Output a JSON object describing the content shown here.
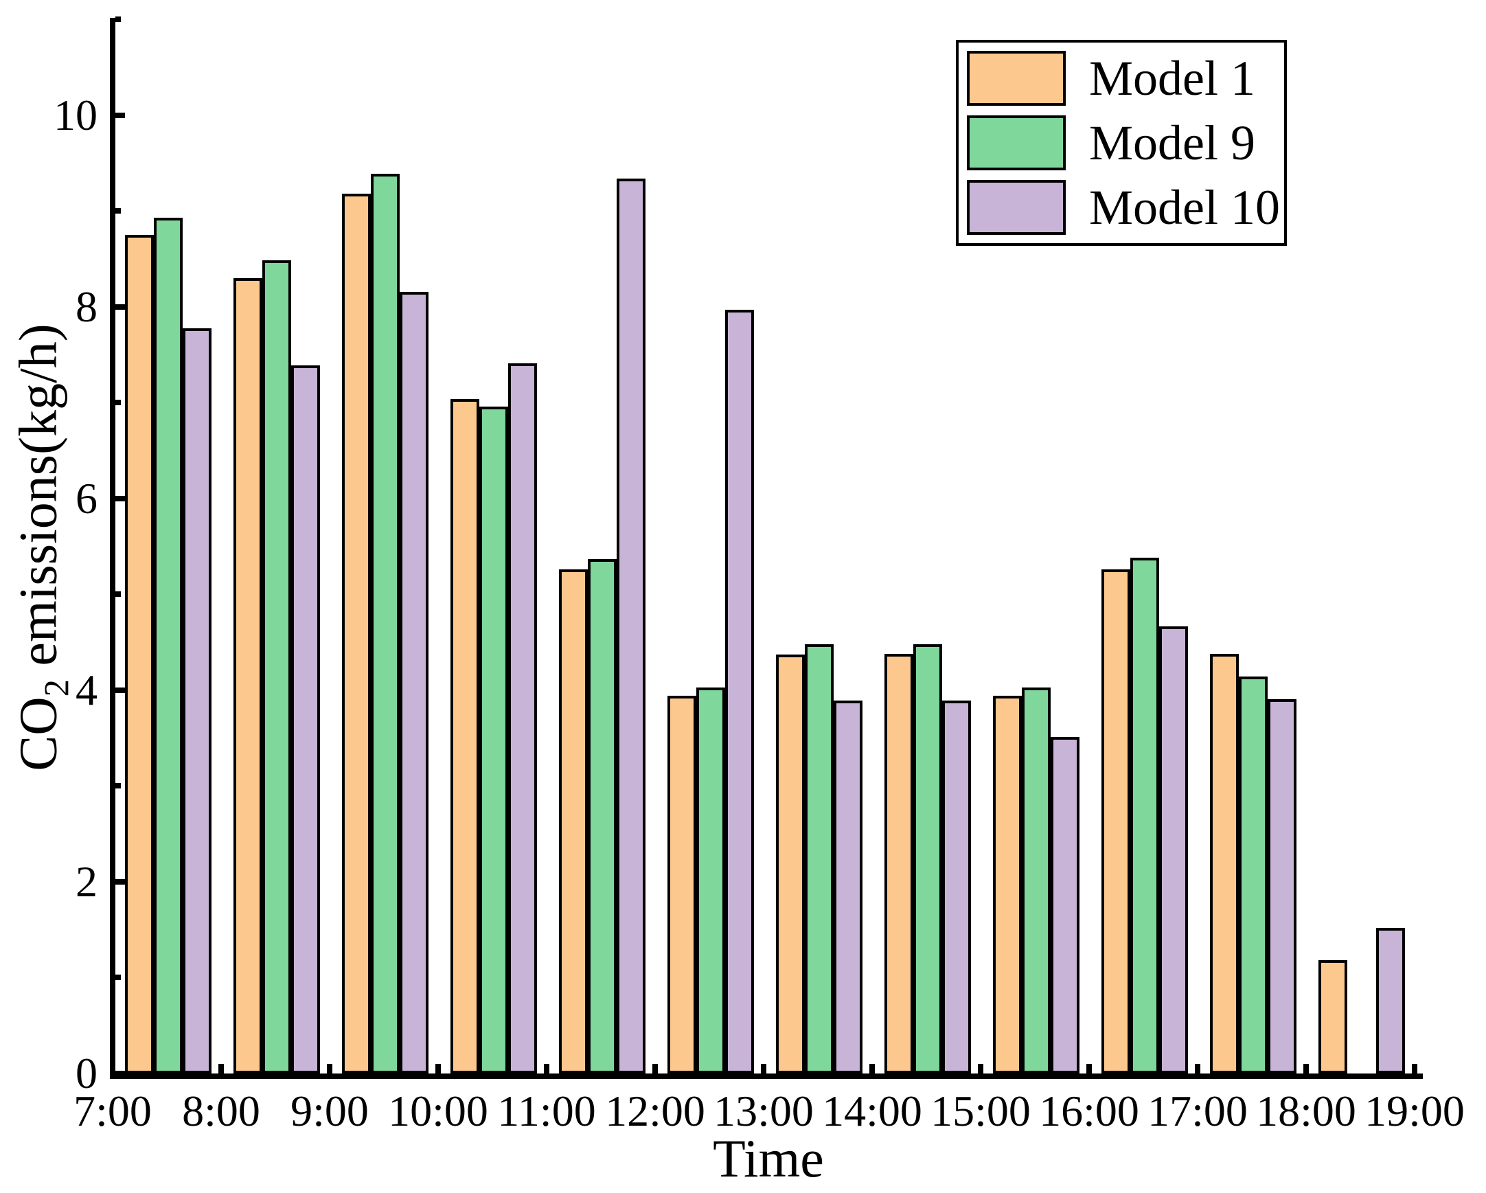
{
  "chart_data": {
    "type": "bar",
    "title": "",
    "xlabel": "Time",
    "ylabel": "CO2 emissions(kg/h)",
    "ylabel_parts": [
      {
        "text": "CO",
        "subscript": false
      },
      {
        "text": "2",
        "subscript": true
      },
      {
        "text": " emissions(kg/h)",
        "subscript": false
      }
    ],
    "categories": [
      "7:00",
      "8:00",
      "9:00",
      "10:00",
      "11:00",
      "12:00",
      "13:00",
      "14:00",
      "15:00",
      "16:00",
      "17:00",
      "18:00"
    ],
    "x_ticks": [
      "7:00",
      "8:00",
      "9:00",
      "10:00",
      "11:00",
      "12:00",
      "13:00",
      "14:00",
      "15:00",
      "16:00",
      "17:00",
      "18:00",
      "19:00"
    ],
    "y_ticks_major": [
      0,
      2,
      4,
      6,
      8,
      10
    ],
    "y_ticks_minor": [
      1,
      3,
      5,
      7,
      9,
      11
    ],
    "ylim": [
      0,
      11
    ],
    "grid": false,
    "legend_position": "top-right",
    "series": [
      {
        "name": "Model 1",
        "color": "#FDC88E",
        "values": [
          8.75,
          8.3,
          9.18,
          7.04,
          5.26,
          3.94,
          4.37,
          4.38,
          3.94,
          5.26,
          4.38,
          1.18
        ]
      },
      {
        "name": "Model 9",
        "color": "#7FD79B",
        "values": [
          8.93,
          8.49,
          9.39,
          6.96,
          5.37,
          4.03,
          4.48,
          4.48,
          4.03,
          5.38,
          4.14,
          null
        ]
      },
      {
        "name": "Model 10",
        "color": "#C8B4D6",
        "values": [
          7.78,
          7.39,
          8.16,
          7.41,
          9.34,
          7.97,
          3.89,
          3.89,
          3.51,
          4.67,
          3.91,
          1.52
        ]
      }
    ],
    "bar_edge_color": "#000000",
    "axis_color": "#000000",
    "text_color": "#000000",
    "background": "#FFFFFF"
  }
}
